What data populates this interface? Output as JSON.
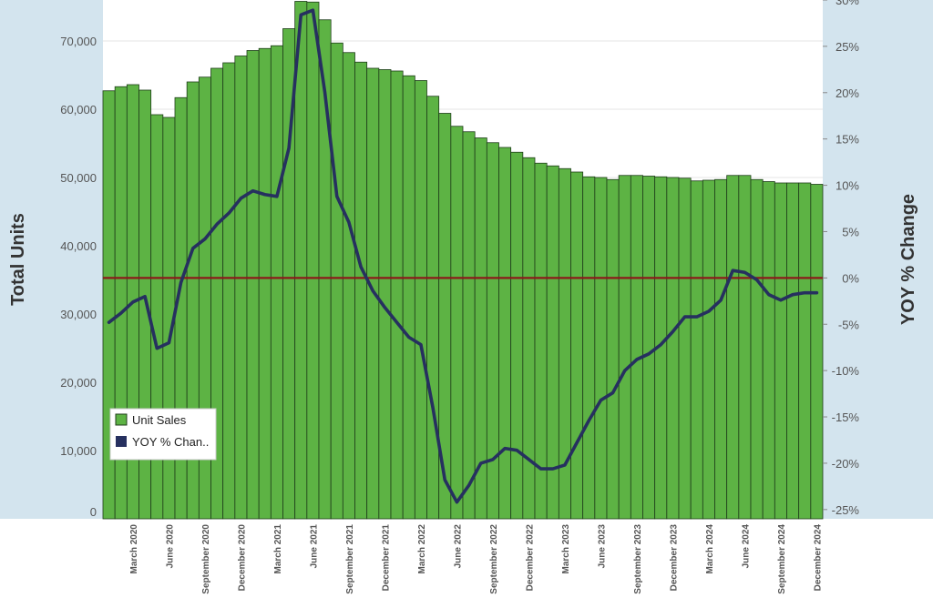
{
  "colors": {
    "panel_bg": "#d3e4ee",
    "bar_fill": "#5db344",
    "bar_stroke": "#1e3d1a",
    "line": "#26305f",
    "zero_line": "#8b1a1a",
    "gridline": "#e6e6e6"
  },
  "chart_data": {
    "type": "bar",
    "combo_line": true,
    "grid": true,
    "legend_position": "bottom-left",
    "ylabel": "Total Units",
    "y2label": "YOY % Change",
    "ylim": [
      0,
      76000
    ],
    "y2lim": [
      -26,
      30
    ],
    "y_ticks": [
      0,
      10000,
      20000,
      30000,
      40000,
      50000,
      60000,
      70000
    ],
    "y_tick_labels": [
      "0",
      "10,000",
      "20,000",
      "30,000",
      "40,000",
      "50,000",
      "60,000",
      "70,000"
    ],
    "y2_ticks": [
      -25,
      -20,
      -15,
      -10,
      -5,
      0,
      5,
      10,
      15,
      20,
      25,
      30
    ],
    "y2_tick_labels": [
      "-25%",
      "-20%",
      "-15%",
      "-10%",
      "-5%",
      "0%",
      "5%",
      "10%",
      "15%",
      "20%",
      "25%",
      "30%"
    ],
    "x_tick_labels": [
      {
        "index": 2,
        "label": "March 2020"
      },
      {
        "index": 5,
        "label": "June 2020"
      },
      {
        "index": 8,
        "label": "September 2020"
      },
      {
        "index": 11,
        "label": "December 2020"
      },
      {
        "index": 14,
        "label": "March 2021"
      },
      {
        "index": 17,
        "label": "June 2021"
      },
      {
        "index": 20,
        "label": "September 2021"
      },
      {
        "index": 23,
        "label": "December 2021"
      },
      {
        "index": 26,
        "label": "March 2022"
      },
      {
        "index": 29,
        "label": "June 2022"
      },
      {
        "index": 32,
        "label": "September 2022"
      },
      {
        "index": 35,
        "label": "December 2022"
      },
      {
        "index": 38,
        "label": "March 2023"
      },
      {
        "index": 41,
        "label": "June 2023"
      },
      {
        "index": 44,
        "label": "September 2023"
      },
      {
        "index": 47,
        "label": "December 2023"
      },
      {
        "index": 50,
        "label": "March 2024"
      },
      {
        "index": 53,
        "label": "June 2024"
      },
      {
        "index": 56,
        "label": "September 2024"
      },
      {
        "index": 59,
        "label": "December 2024"
      }
    ],
    "categories": [
      "2020-01",
      "2020-02",
      "2020-03",
      "2020-04",
      "2020-05",
      "2020-06",
      "2020-07",
      "2020-08",
      "2020-09",
      "2020-10",
      "2020-11",
      "2020-12",
      "2021-01",
      "2021-02",
      "2021-03",
      "2021-04",
      "2021-05",
      "2021-06",
      "2021-07",
      "2021-08",
      "2021-09",
      "2021-10",
      "2021-11",
      "2021-12",
      "2022-01",
      "2022-02",
      "2022-03",
      "2022-04",
      "2022-05",
      "2022-06",
      "2022-07",
      "2022-08",
      "2022-09",
      "2022-10",
      "2022-11",
      "2022-12",
      "2023-01",
      "2023-02",
      "2023-03",
      "2023-04",
      "2023-05",
      "2023-06",
      "2023-07",
      "2023-08",
      "2023-09",
      "2023-10",
      "2023-11",
      "2023-12",
      "2024-01",
      "2024-02",
      "2024-03",
      "2024-04",
      "2024-05",
      "2024-06",
      "2024-07",
      "2024-08",
      "2024-09",
      "2024-10",
      "2024-11",
      "2024-12"
    ],
    "series": [
      {
        "name": "Unit Sales",
        "type": "bar",
        "axis": "left",
        "values": [
          62700,
          63300,
          63600,
          62800,
          59200,
          58800,
          61700,
          64000,
          64700,
          66000,
          66800,
          67800,
          68600,
          68900,
          69300,
          71800,
          75800,
          75700,
          73100,
          69700,
          68300,
          66900,
          66000,
          65800,
          65600,
          64900,
          64200,
          61900,
          59400,
          57500,
          56700,
          55800,
          55100,
          54400,
          53700,
          52900,
          52100,
          51700,
          51300,
          50800,
          50100,
          50000,
          49700,
          50300,
          50300,
          50200,
          50100,
          50000,
          49900,
          49500,
          49600,
          49700,
          50300,
          50300,
          49700,
          49400,
          49200,
          49200,
          49200,
          49000
        ]
      },
      {
        "name": "YOY % Chan..",
        "type": "line",
        "axis": "right",
        "values": [
          -4.8,
          -3.8,
          -2.6,
          -2.0,
          -7.6,
          -7.0,
          -0.5,
          3.2,
          4.2,
          5.8,
          7.0,
          8.6,
          9.4,
          9.0,
          8.8,
          14.0,
          28.4,
          28.9,
          20.0,
          8.8,
          6.0,
          1.2,
          -1.4,
          -3.2,
          -4.8,
          -6.4,
          -7.2,
          -14.0,
          -21.8,
          -24.2,
          -22.4,
          -20.0,
          -19.6,
          -18.4,
          -18.6,
          -19.6,
          -20.6,
          -20.6,
          -20.2,
          -17.8,
          -15.4,
          -13.2,
          -12.4,
          -10.0,
          -8.8,
          -8.2,
          -7.2,
          -5.8,
          -4.2,
          -4.2,
          -3.6,
          -2.4,
          0.8,
          0.6,
          -0.2,
          -1.8,
          -2.4,
          -1.8,
          -1.6,
          -1.6
        ]
      }
    ]
  }
}
